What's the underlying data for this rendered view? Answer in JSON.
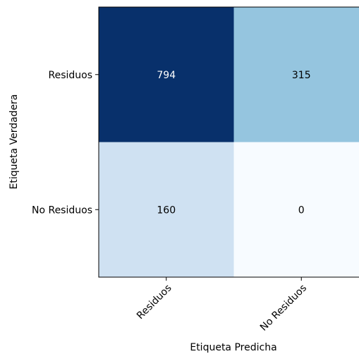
{
  "chart_data": {
    "type": "heatmap",
    "title": "",
    "xlabel": "Etiqueta Predicha",
    "ylabel": "Etiqueta Verdadera",
    "x_categories": [
      "Residuos",
      "No Residuos"
    ],
    "y_categories": [
      "Residuos",
      "No Residuos"
    ],
    "values": [
      [
        794,
        315
      ],
      [
        160,
        0
      ]
    ],
    "value_labels": [
      [
        "794",
        "315"
      ],
      [
        "160",
        "0"
      ]
    ],
    "colormap": "Blues",
    "colors": {
      "low": "#f7fbff",
      "high": "#08306b",
      "text_on_dark": "#ffffff",
      "text_on_light": "#000000"
    },
    "legend": "none"
  }
}
